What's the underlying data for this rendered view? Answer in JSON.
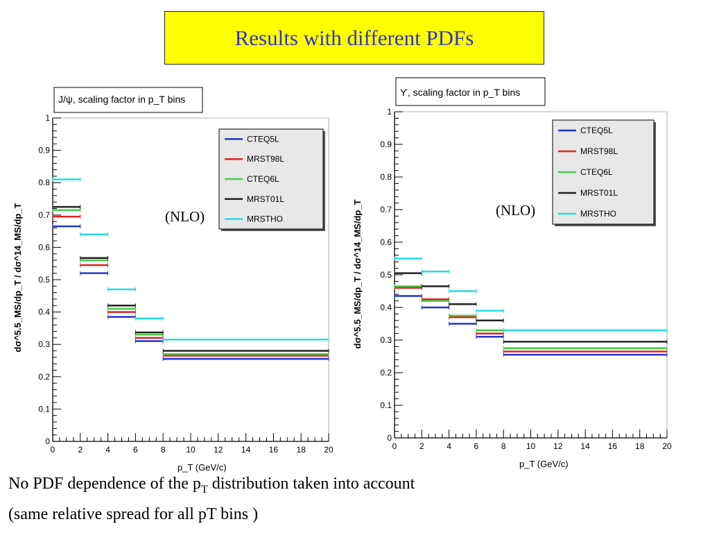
{
  "slide_title": "Results with different PDFs",
  "nlo_label": "(NLO)",
  "footnote": {
    "line1_pre": "No PDF dependence of the p",
    "line1_sub": "T",
    "line1_post": " distribution taken into account",
    "line2": "(same relative spread for all pT bins )"
  },
  "colors": {
    "CTEQ5L": "#2233cc",
    "MRST98L": "#dd2222",
    "CTEQ6L": "#44cc44",
    "MRST01L": "#222222",
    "MRSTHO": "#22dddd"
  },
  "chart_data": [
    {
      "type": "line",
      "title": "J/ψ, scaling factor in p_T bins",
      "xlabel": "p_T (GeV/c)",
      "ylabel": "dσ^5.5_MS/dp_T / dσ^14_MS/dp_T",
      "xlim": [
        0,
        20
      ],
      "ylim": [
        0,
        1
      ],
      "xticks": [
        "0",
        "2",
        "4",
        "6",
        "8",
        "10",
        "12",
        "14",
        "16",
        "18",
        "20"
      ],
      "yticks": [
        "0",
        "0.1",
        "0.2",
        "0.3",
        "0.4",
        "0.5",
        "0.6",
        "0.7",
        "0.8",
        "0.9",
        "1"
      ],
      "legend": "top-right",
      "bins": [
        [
          0,
          2
        ],
        [
          2,
          4
        ],
        [
          4,
          6
        ],
        [
          6,
          8
        ],
        [
          8,
          20
        ]
      ],
      "series": [
        {
          "name": "CTEQ5L",
          "values": [
            0.665,
            0.52,
            0.385,
            0.31,
            0.255
          ]
        },
        {
          "name": "MRST98L",
          "values": [
            0.695,
            0.545,
            0.4,
            0.32,
            0.265
          ]
        },
        {
          "name": "CTEQ6L",
          "values": [
            0.715,
            0.56,
            0.41,
            0.33,
            0.27
          ]
        },
        {
          "name": "MRST01L",
          "values": [
            0.725,
            0.567,
            0.42,
            0.337,
            0.28
          ]
        },
        {
          "name": "MRSTHO",
          "values": [
            0.81,
            0.64,
            0.47,
            0.38,
            0.315
          ]
        }
      ]
    },
    {
      "type": "line",
      "title": "ϒ, scaling factor in p_T bins",
      "xlabel": "p_T (GeV/c)",
      "ylabel": "dσ^5.5_MS/dp_T / dσ^14_MS/dp_T",
      "xlim": [
        0,
        20
      ],
      "ylim": [
        0,
        1
      ],
      "xticks": [
        "0",
        "2",
        "4",
        "6",
        "8",
        "10",
        "12",
        "14",
        "16",
        "18",
        "20"
      ],
      "yticks": [
        "0",
        "0.1",
        "0.2",
        "0.3",
        "0.4",
        "0.5",
        "0.6",
        "0.7",
        "0.8",
        "0.9",
        "1"
      ],
      "legend": "top-right",
      "bins": [
        [
          0,
          2
        ],
        [
          2,
          4
        ],
        [
          4,
          6
        ],
        [
          6,
          8
        ],
        [
          8,
          20
        ]
      ],
      "series": [
        {
          "name": "CTEQ5L",
          "values": [
            0.435,
            0.4,
            0.35,
            0.31,
            0.255
          ]
        },
        {
          "name": "MRST98L",
          "values": [
            0.46,
            0.425,
            0.37,
            0.32,
            0.265
          ]
        },
        {
          "name": "CTEQ6L",
          "values": [
            0.465,
            0.42,
            0.375,
            0.33,
            0.275
          ]
        },
        {
          "name": "MRST01L",
          "values": [
            0.505,
            0.465,
            0.41,
            0.36,
            0.295
          ]
        },
        {
          "name": "MRSTHO",
          "values": [
            0.55,
            0.51,
            0.45,
            0.39,
            0.33
          ]
        }
      ]
    }
  ]
}
